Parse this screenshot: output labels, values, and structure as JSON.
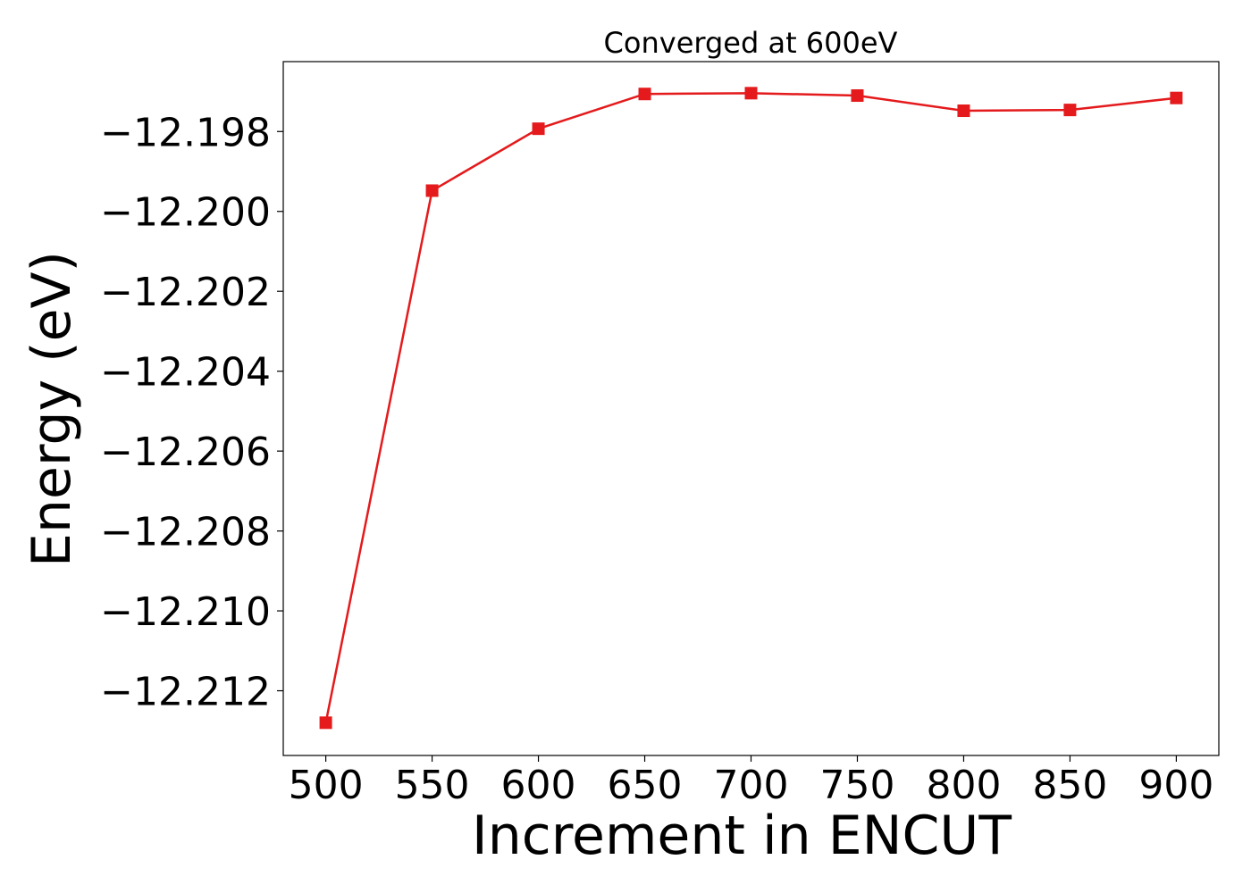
{
  "chart_data": {
    "type": "line",
    "title": "Converged at 600eV",
    "xlabel": "Increment in ENCUT",
    "ylabel": "Energy (eV)",
    "x": [
      500,
      550,
      600,
      650,
      700,
      750,
      800,
      850,
      900
    ],
    "series": [
      {
        "values": [
          -12.2128,
          -12.19948,
          -12.19793,
          -12.19706,
          -12.19704,
          -12.1971,
          -12.19748,
          -12.19746,
          -12.19716
        ],
        "color": "#e41a1c",
        "marker": "square"
      }
    ],
    "xticks": [
      500,
      550,
      600,
      650,
      700,
      750,
      800,
      850,
      900
    ],
    "yticks": [
      -12.212,
      -12.21,
      -12.208,
      -12.206,
      -12.204,
      -12.202,
      -12.2,
      -12.198
    ],
    "xtick_labels": [
      "500",
      "550",
      "600",
      "650",
      "700",
      "750",
      "800",
      "850",
      "900"
    ],
    "ytick_labels": [
      "−12.212",
      "−12.210",
      "−12.208",
      "−12.206",
      "−12.204",
      "−12.202",
      "−12.200",
      "−12.198"
    ],
    "xlim": [
      480,
      920
    ],
    "ylim": [
      -12.21362,
      -12.19625
    ],
    "grid": false,
    "legend": false
  }
}
